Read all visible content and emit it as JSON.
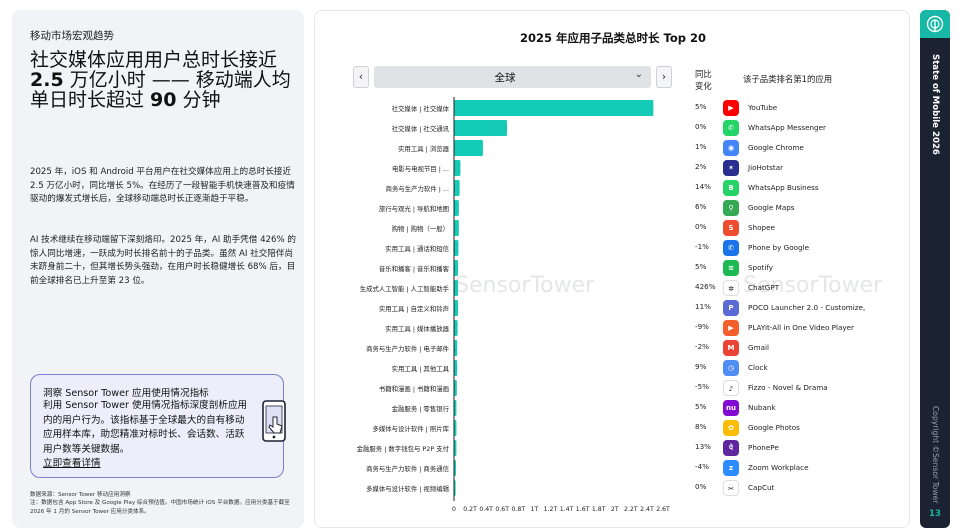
{
  "section_label": "移动市场宏观趋势",
  "headline": {
    "part1": "社交媒体应用用户总时长接近 ",
    "bold1": "2.5",
    "part2": " 万亿小时 —— 移动端人均单日时长超过 ",
    "bold2": "90",
    "part3": " 分钟"
  },
  "paragraphs": [
    "2025 年，iOS 和 Android 平台用户在社交媒体应用上的总时长接近 2.5 万亿小时，同比增长 5%。在经历了一段智能手机快速普及和疫情驱动的爆发式增长后，全球移动端总时长正逐渐趋于平稳。",
    "AI 技术继续在移动端留下深刻烙印。2025 年，AI 助手凭借 426% 的惊人同比增速，一跃成为时长排名前十的子品类。虽然 AI 社交陪伴尚未跻身前二十，但其增长势头强劲，在用户时长稳健增长 68% 后，目前全球排名已上升至第 23 位。"
  ],
  "callout": {
    "title": "洞察 Sensor Tower 应用使用情况指标",
    "text": "利用 Sensor Tower 使用情况指标深度剖析应用内的用户行为。该指标基于全球最大的自有移动应用样本库，助您精准对标时长、会话数、活跃用户数等关键数据。",
    "link": "立即查看详情"
  },
  "footnote": {
    "line1": "数据来源：Sensor Tower 移动应用洞察",
    "line2": "注：数据包含 App Store 及 Google Play 综合预估值。中国市场统计 iOS 平台数据。应用分类基于截至 2026 年 1 月的 Sensor Tower 应用分类体系。"
  },
  "chart": {
    "title": "2025 年应用子品类总时长 Top 20",
    "region": "全球",
    "prev_label": "‹",
    "next_label": "›",
    "col_growth": "同比\n变化",
    "col_top_app": "该子品类排名第1的应用",
    "watermark": "SensorTower"
  },
  "chart_data": {
    "type": "bar",
    "orientation": "horizontal",
    "title": "2025 年应用子品类总时长 Top 20",
    "categories": [
      "社交媒体 | 社交媒体",
      "社交媒体 | 社交通讯",
      "实用工具 | 浏览器",
      "电影与电视节目 | ...",
      "商务与生产力软件 | ...",
      "旅行与观光 | 导航和地图",
      "购物 | 购物（一般）",
      "实用工具 | 通话和短信",
      "音乐和播客 | 音乐和播客",
      "生成式人工智能 | 人工智能助手",
      "实用工具 | 自定义和铃声",
      "实用工具 | 媒体播放器",
      "商务与生产力软件 | 电子邮件",
      "实用工具 | 其他工具",
      "书籍和漫画 | 书籍和漫画",
      "金融服务 | 零售银行",
      "多媒体与设计软件 | 照片库",
      "金融服务 | 数字钱包与 P2P 支付",
      "商务与生产力软件 | 商务通信",
      "多媒体与设计软件 | 视频编辑"
    ],
    "values": [
      2.48,
      0.66,
      0.36,
      0.08,
      0.07,
      0.06,
      0.06,
      0.055,
      0.05,
      0.05,
      0.05,
      0.045,
      0.04,
      0.04,
      0.035,
      0.03,
      0.03,
      0.03,
      0.025,
      0.02
    ],
    "unit": "万亿小时",
    "xlim": [
      0,
      2.6
    ],
    "xticks": [
      "0",
      "0.2T",
      "0.4T",
      "0.6T",
      "0.8T",
      "1T",
      "1.2T",
      "1.4T",
      "1.6T",
      "1.8T",
      "2T",
      "2.2T",
      "2.4T",
      "2.6T"
    ],
    "yoy_growth": [
      "5%",
      "0%",
      "1%",
      "2%",
      "14%",
      "6%",
      "0%",
      "-1%",
      "5%",
      "426%",
      "11%",
      "-9%",
      "-2%",
      "9%",
      "-5%",
      "5%",
      "8%",
      "13%",
      "-4%",
      "0%"
    ],
    "top_apps": [
      {
        "name": "YouTube",
        "icon": "youtube-icon",
        "color": "#ff0000",
        "glyph": "▶"
      },
      {
        "name": "WhatsApp Messenger",
        "icon": "whatsapp-icon",
        "color": "#25d366",
        "glyph": "✆"
      },
      {
        "name": "Google Chrome",
        "icon": "chrome-icon",
        "color": "#4285f4",
        "glyph": "◉"
      },
      {
        "name": "JioHotstar",
        "icon": "jiohotstar-icon",
        "color": "#2a2f8f",
        "glyph": "✶"
      },
      {
        "name": "WhatsApp Business",
        "icon": "whatsapp-business-icon",
        "color": "#25d366",
        "glyph": "B"
      },
      {
        "name": "Google Maps",
        "icon": "google-maps-icon",
        "color": "#34a853",
        "glyph": "⚲"
      },
      {
        "name": "Shopee",
        "icon": "shopee-icon",
        "color": "#ee4d2d",
        "glyph": "S"
      },
      {
        "name": "Phone by Google",
        "icon": "phone-icon",
        "color": "#1a73e8",
        "glyph": "✆"
      },
      {
        "name": "Spotify",
        "icon": "spotify-icon",
        "color": "#1db954",
        "glyph": "≋"
      },
      {
        "name": "ChatGPT",
        "icon": "chatgpt-icon",
        "color": "#ffffff",
        "glyph": "✲"
      },
      {
        "name": "POCO Launcher 2.0 - Customize,",
        "icon": "poco-launcher-icon",
        "color": "#5b6bd6",
        "glyph": "P"
      },
      {
        "name": "PLAYit-All in One Video Player",
        "icon": "playit-icon",
        "color": "#f25f2c",
        "glyph": "▶"
      },
      {
        "name": "Gmail",
        "icon": "gmail-icon",
        "color": "#ea4335",
        "glyph": "M"
      },
      {
        "name": "Clock",
        "icon": "clock-icon",
        "color": "#4f8df5",
        "glyph": "◷"
      },
      {
        "name": "Fizzo - Novel & Drama",
        "icon": "fizzo-icon",
        "color": "#ffffff",
        "glyph": "♪"
      },
      {
        "name": "Nubank",
        "icon": "nubank-icon",
        "color": "#820ad1",
        "glyph": "nu"
      },
      {
        "name": "Google Photos",
        "icon": "google-photos-icon",
        "color": "#fbbc05",
        "glyph": "✿"
      },
      {
        "name": "PhonePe",
        "icon": "phonepe-icon",
        "color": "#5f259f",
        "glyph": "पे"
      },
      {
        "name": "Zoom Workplace",
        "icon": "zoom-icon",
        "color": "#2d8cff",
        "glyph": "z"
      },
      {
        "name": "CapCut",
        "icon": "capcut-icon",
        "color": "#ffffff",
        "glyph": "✂"
      }
    ],
    "bar_color": "#13cbb7",
    "grid": false
  },
  "sidebar": {
    "brand": "State of Mobile 2026",
    "copyright": "Copyright ©Sensor Tower",
    "page_number": "13",
    "accent": "#17b8a6"
  }
}
